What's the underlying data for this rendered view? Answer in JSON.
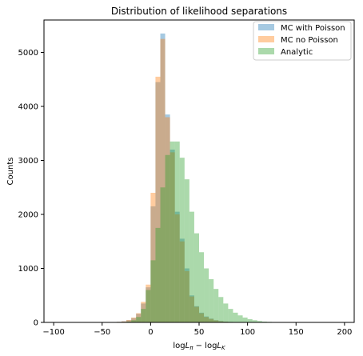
{
  "chart_data": {
    "type": "bar",
    "title": "Distribution of likelihood separations",
    "xlabel": "log L_π − log L_K",
    "ylabel": "Counts",
    "xlim": [
      -110,
      210
    ],
    "ylim": [
      0,
      5600
    ],
    "xticks": [
      "−100",
      "−50",
      "0",
      "50",
      "100",
      "150",
      "200"
    ],
    "xtick_values": [
      -100,
      -50,
      0,
      50,
      100,
      150,
      200
    ],
    "yticks": [
      "0",
      "1000",
      "2000",
      "3000",
      "4000",
      "5000"
    ],
    "ytick_values": [
      0,
      1000,
      2000,
      3000,
      4000,
      5000
    ],
    "grid": false,
    "legend": "top-right",
    "bin_width": 5,
    "bin_left_edges": [
      -40,
      -35,
      -30,
      -25,
      -20,
      -15,
      -10,
      -5,
      0,
      5,
      10,
      15,
      20,
      25,
      30,
      35,
      40,
      45,
      50,
      55,
      60,
      65,
      70,
      75,
      80,
      85,
      90,
      95,
      100,
      105,
      110,
      115,
      120,
      125,
      130,
      135,
      140,
      145,
      150,
      155,
      160,
      165
    ],
    "series": [
      {
        "name": "MC with Poisson",
        "color": "#1f77b4",
        "values": [
          5,
          10,
          20,
          40,
          80,
          160,
          350,
          650,
          2150,
          4450,
          5350,
          3850,
          3200,
          2050,
          1550,
          1000,
          500,
          300,
          180,
          110,
          70,
          40,
          25,
          15,
          10,
          6,
          4,
          3,
          2,
          1,
          1,
          0,
          0,
          0,
          0,
          0,
          0,
          0,
          0,
          0,
          0,
          0
        ]
      },
      {
        "name": "MC no Poisson",
        "color": "#ff7f0e",
        "values": [
          5,
          10,
          20,
          45,
          90,
          170,
          380,
          700,
          2400,
          4550,
          5250,
          3800,
          3150,
          2000,
          1500,
          950,
          480,
          290,
          170,
          100,
          65,
          38,
          22,
          14,
          9,
          5,
          3,
          2,
          1,
          1,
          0,
          0,
          0,
          0,
          0,
          0,
          0,
          0,
          0,
          0,
          0,
          0
        ]
      },
      {
        "name": "Analytic",
        "color": "#2ca02c",
        "values": [
          0,
          2,
          5,
          15,
          40,
          100,
          250,
          600,
          1150,
          1750,
          2500,
          3100,
          3350,
          3350,
          3050,
          2650,
          2050,
          1650,
          1300,
          1000,
          800,
          620,
          470,
          350,
          250,
          180,
          130,
          90,
          60,
          40,
          25,
          15,
          10,
          6,
          4,
          2,
          1,
          1,
          0,
          0,
          0,
          0
        ]
      }
    ]
  }
}
